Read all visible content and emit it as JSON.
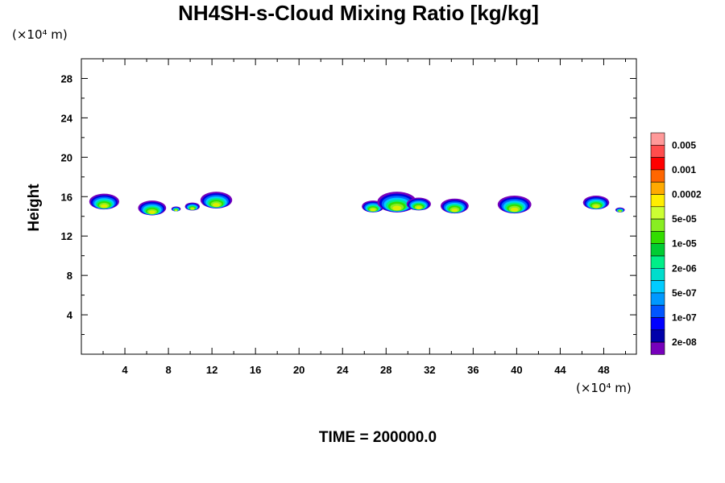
{
  "chart_data": {
    "type": "heatmap",
    "title": "NH4SH-s-Cloud Mixing Ratio [kg/kg]",
    "xlabel": "",
    "ylabel": "Height",
    "x_unit": "(×10⁴ m)",
    "y_unit": "(×10⁴ m)",
    "footer": "TIME = 200000.0",
    "xlim": [
      0,
      51
    ],
    "ylim": [
      0,
      30
    ],
    "x_ticks": [
      "4",
      "8",
      "12",
      "16",
      "20",
      "24",
      "28",
      "32",
      "36",
      "40",
      "44",
      "48"
    ],
    "y_ticks": [
      "4",
      "8",
      "12",
      "16",
      "20",
      "24",
      "28"
    ],
    "colorbar": {
      "labels": [
        "0.005",
        "0.001",
        "0.0002",
        "5e-05",
        "1e-05",
        "2e-06",
        "5e-07",
        "1e-07",
        "2e-08"
      ],
      "colors": [
        "#ff9999",
        "#ff4d4d",
        "#ff0000",
        "#ff6600",
        "#ffaa00",
        "#ffee00",
        "#ccff33",
        "#88ee22",
        "#33dd00",
        "#00cc33",
        "#00ee88",
        "#00ddcc",
        "#00ccff",
        "#0099ff",
        "#0055ff",
        "#0000ff",
        "#0000aa",
        "#7700bb"
      ]
    },
    "clouds": [
      {
        "x": 2.1,
        "base": 14.7,
        "top": 16.3
      },
      {
        "x": 6.5,
        "base": 14.1,
        "top": 15.6
      },
      {
        "x": 8.7,
        "base": 14.5,
        "top": 15.0
      },
      {
        "x": 10.2,
        "base": 14.6,
        "top": 15.4
      },
      {
        "x": 12.4,
        "base": 14.8,
        "top": 16.5
      },
      {
        "x": 26.8,
        "base": 14.4,
        "top": 15.6
      },
      {
        "x": 29.0,
        "base": 14.4,
        "top": 16.5
      },
      {
        "x": 31.0,
        "base": 14.6,
        "top": 15.9
      },
      {
        "x": 34.3,
        "base": 14.3,
        "top": 15.8
      },
      {
        "x": 39.8,
        "base": 14.3,
        "top": 16.1
      },
      {
        "x": 47.3,
        "base": 14.7,
        "top": 16.1
      },
      {
        "x": 49.5,
        "base": 14.4,
        "top": 14.9
      }
    ]
  }
}
